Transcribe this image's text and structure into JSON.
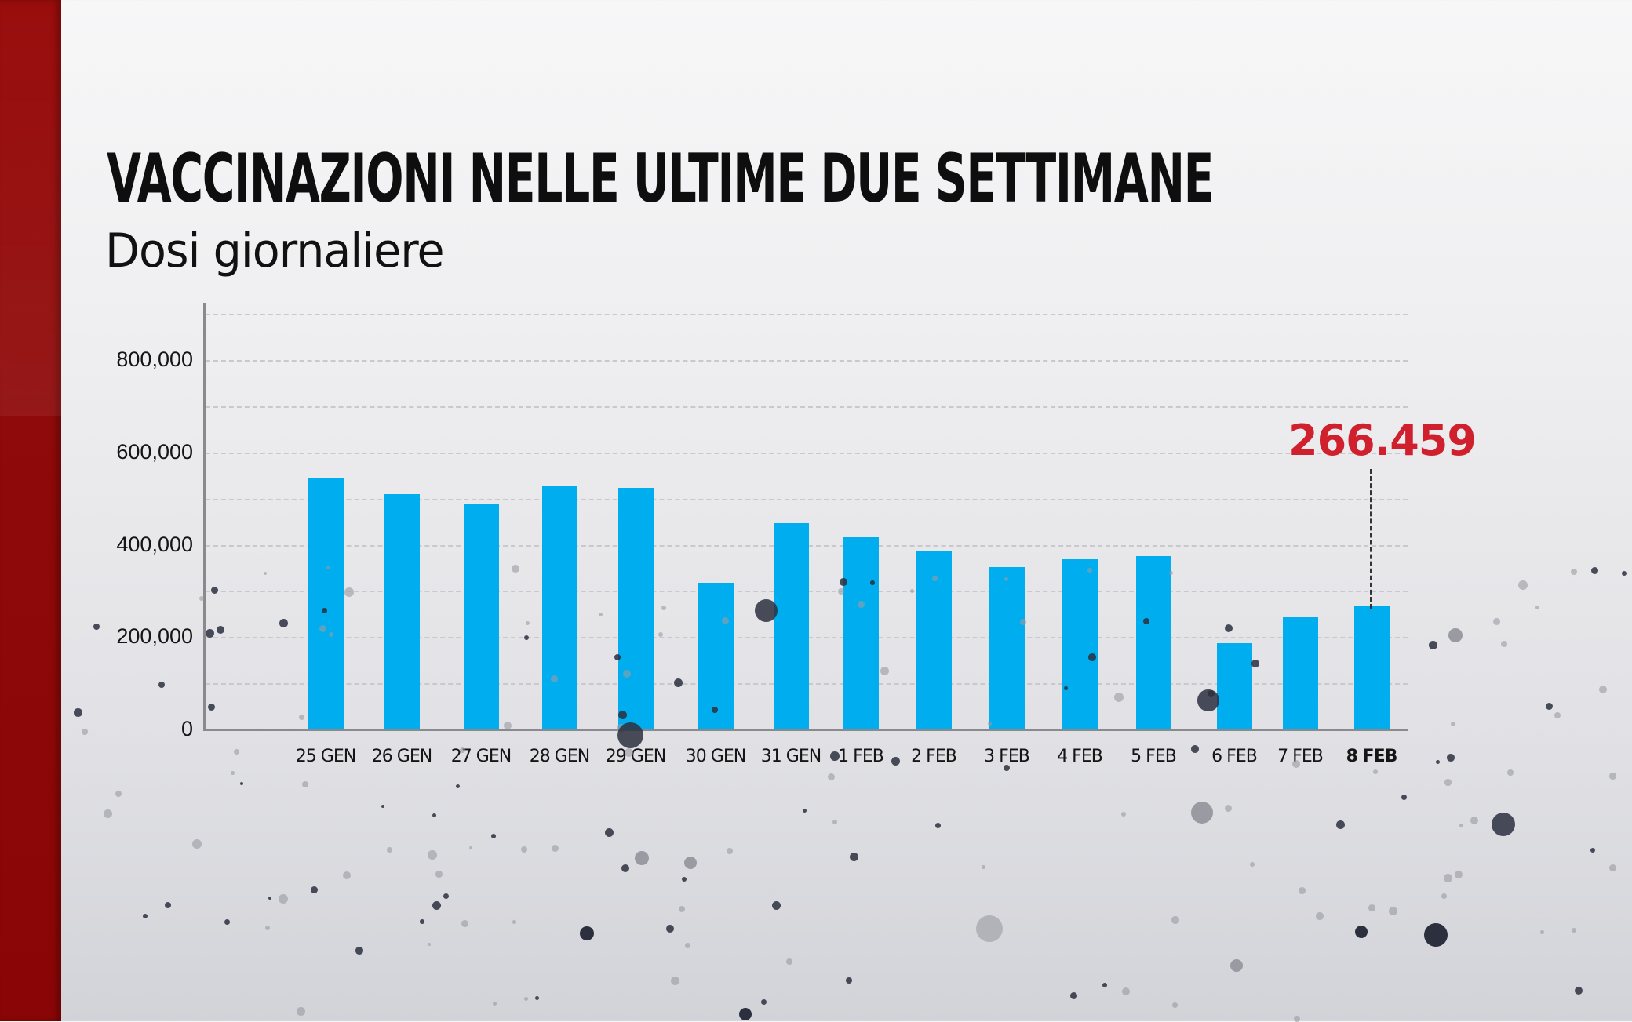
{
  "header": {
    "title": "VACCINAZIONI NELLE ULTIME DUE SETTIMANE",
    "subtitle": "Dosi giornaliere"
  },
  "colors": {
    "bar": "#00aeef",
    "callout": "#d0202e",
    "side_strip": "#8f0a0a"
  },
  "axis": {
    "y_ticks": [
      "800,000",
      "600,000",
      "400,000",
      "200,000",
      "0"
    ],
    "x_ticks": [
      "25 GEN",
      "26 GEN",
      "27 GEN",
      "28 GEN",
      "29 GEN",
      "30 GEN",
      "31 GEN",
      "1 FEB",
      "2 FEB",
      "3 FEB",
      "4 FEB",
      "5 FEB",
      "6 FEB",
      "7 FEB",
      "8 FEB"
    ]
  },
  "callout": {
    "label": "266.459",
    "category": "8 FEB"
  },
  "chart_data": {
    "type": "bar",
    "title": "VACCINAZIONI NELLE ULTIME DUE SETTIMANE",
    "subtitle": "Dosi giornaliere",
    "xlabel": "",
    "ylabel": "",
    "categories": [
      "25 GEN",
      "26 GEN",
      "27 GEN",
      "28 GEN",
      "29 GEN",
      "30 GEN",
      "31 GEN",
      "1 FEB",
      "2 FEB",
      "3 FEB",
      "4 FEB",
      "5 FEB",
      "6 FEB",
      "7 FEB",
      "8 FEB"
    ],
    "values": [
      543000,
      509000,
      487000,
      528000,
      523000,
      317000,
      447000,
      416000,
      385000,
      351000,
      368000,
      375000,
      187000,
      243000,
      266459
    ],
    "ylim": [
      0,
      900000
    ],
    "y_ticks": [
      0,
      200000,
      400000,
      600000,
      800000
    ],
    "grid": true,
    "grid_step": 100000,
    "legend": "none",
    "annotations": [
      {
        "category": "8 FEB",
        "text": "266.459",
        "color": "#d0202e"
      }
    ],
    "highlighted_category": "8 FEB"
  }
}
